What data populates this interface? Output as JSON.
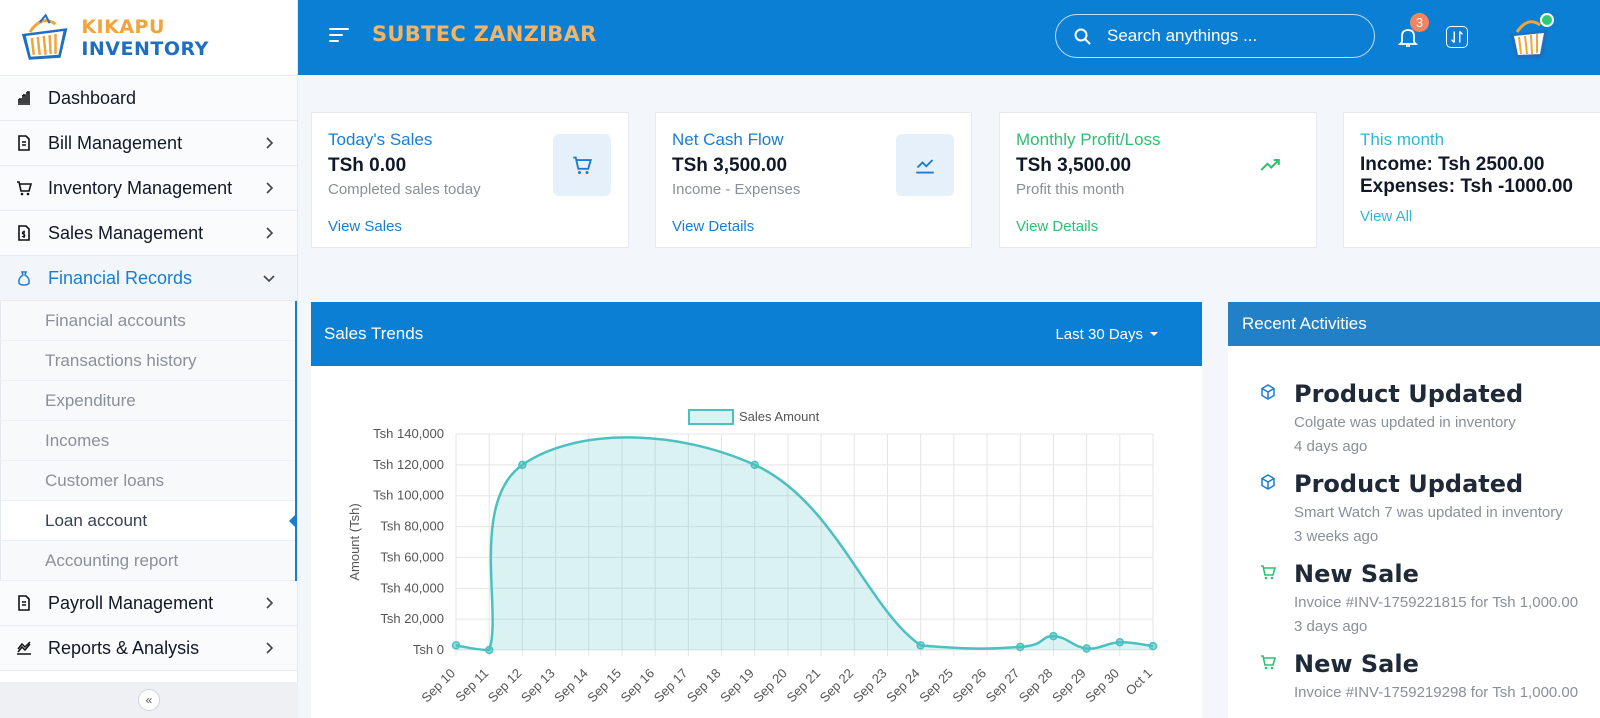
{
  "brand": {
    "part1": "KIKAPU",
    "part2": "INVENTORY"
  },
  "header": {
    "org_name": "SUBTEC ZANZIBAR",
    "search_placeholder": "Search anythings ...",
    "notification_count": "3"
  },
  "sidebar": {
    "items": [
      {
        "label": "Dashboard"
      },
      {
        "label": "Bill Management"
      },
      {
        "label": "Inventory Management"
      },
      {
        "label": "Sales Management"
      },
      {
        "label": "Financial Records"
      },
      {
        "label": "Payroll Management"
      },
      {
        "label": "Reports & Analysis"
      }
    ],
    "sub_items": [
      {
        "label": "Financial accounts"
      },
      {
        "label": "Transactions history"
      },
      {
        "label": "Expenditure"
      },
      {
        "label": "Incomes"
      },
      {
        "label": "Customer loans"
      },
      {
        "label": "Loan account"
      },
      {
        "label": "Accounting report"
      }
    ],
    "collapse_glyph": "«"
  },
  "cards": [
    {
      "title": "Today's Sales",
      "value": "TSh 0.00",
      "sub": "Completed sales today",
      "link": "View Sales",
      "color": "#1a7dd1"
    },
    {
      "title": "Net Cash Flow",
      "value": "TSh 3,500.00",
      "sub": "Income - Expenses",
      "link": "View Details",
      "color": "#1a7dd1"
    },
    {
      "title": "Monthly Profit/Loss",
      "value": "TSh 3,500.00",
      "sub": "Profit this month",
      "link": "View Details",
      "color": "#2fbf71"
    },
    {
      "title": "This month",
      "income": "Income: Tsh 2500.00",
      "expenses": "Expenses: Tsh -1000.00",
      "link": "View All",
      "color": "#2cb8d9"
    }
  ],
  "sales_trends": {
    "title": "Sales Trends",
    "filter": "Last 30 Days"
  },
  "chart_data": {
    "type": "area",
    "title": "",
    "xlabel": "",
    "ylabel": "Amount (Tsh)",
    "legend": "top",
    "grid": true,
    "ylim": [
      0,
      140000
    ],
    "yticks": [
      "Tsh 0",
      "Tsh 20,000",
      "Tsh 40,000",
      "Tsh 60,000",
      "Tsh 80,000",
      "Tsh 100,000",
      "Tsh 120,000",
      "Tsh 140,000"
    ],
    "categories": [
      "Sep 10",
      "Sep 11",
      "Sep 12",
      "Sep 13",
      "Sep 14",
      "Sep 15",
      "Sep 16",
      "Sep 17",
      "Sep 18",
      "Sep 19",
      "Sep 20",
      "Sep 21",
      "Sep 22",
      "Sep 23",
      "Sep 24",
      "Sep 25",
      "Sep 26",
      "Sep 27",
      "Sep 28",
      "Sep 29",
      "Sep 30",
      "Oct 1"
    ],
    "series": [
      {
        "name": "Sales Amount",
        "color": "#4bc0c0",
        "points": [
          {
            "x": "Sep 10",
            "y": 3000
          },
          {
            "x": "Sep 11",
            "y": 0
          },
          {
            "x": "Sep 12",
            "y": 120000
          },
          {
            "x": "Sep 19",
            "y": 120000
          },
          {
            "x": "Sep 24",
            "y": 3000
          },
          {
            "x": "Sep 27",
            "y": 2000
          },
          {
            "x": "Sep 28",
            "y": 9000
          },
          {
            "x": "Sep 29",
            "y": 1000
          },
          {
            "x": "Sep 30",
            "y": 5000
          },
          {
            "x": "Oct 1",
            "y": 2500
          }
        ]
      }
    ]
  },
  "activities": {
    "title": "Recent Activities",
    "items": [
      {
        "title": "Product Updated",
        "desc": "Colgate was updated in inventory",
        "time": "4 days ago",
        "icon": "box-icon",
        "color": "#1a7dd1"
      },
      {
        "title": "Product Updated",
        "desc": "Smart Watch 7 was updated in inventory",
        "time": "3 weeks ago",
        "icon": "box-icon",
        "color": "#1a7dd1"
      },
      {
        "title": "New Sale",
        "desc": "Invoice #INV-1759221815 for Tsh 1,000.00",
        "time": "3 days ago",
        "icon": "cart-icon",
        "color": "#2fbf71"
      },
      {
        "title": "New Sale",
        "desc": "Invoice #INV-1759219298 for Tsh 1,000.00",
        "time": "",
        "icon": "cart-icon",
        "color": "#2fbf71"
      }
    ]
  }
}
